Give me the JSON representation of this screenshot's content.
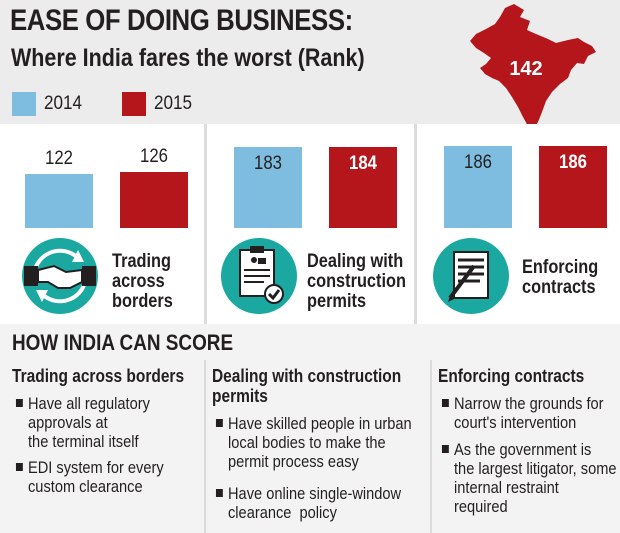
{
  "header": {
    "title": "EASE OF DOING BUSINESS:",
    "subtitle": "Where India fares the worst (Rank)"
  },
  "legend": [
    {
      "label": "2014",
      "color": "#7fbde0"
    },
    {
      "label": "2015",
      "color": "#b4161b"
    }
  ],
  "map": {
    "value": "142",
    "color": "#b4161b",
    "icon": "india-map-icon"
  },
  "chart_data": {
    "type": "bar",
    "title": "Where India fares the worst (Rank)",
    "categories": [
      "Trading across borders",
      "Dealing with construction permits",
      "Enforcing contracts"
    ],
    "series": [
      {
        "name": "2014",
        "values": [
          122,
          183,
          186
        ],
        "color": "#7fbde0"
      },
      {
        "name": "2015",
        "values": [
          126,
          184,
          186
        ],
        "color": "#b4161b"
      }
    ],
    "value_labels": [
      [
        "122",
        "183",
        "186"
      ],
      [
        "126",
        "184",
        "186"
      ]
    ],
    "legend_position": "top-left",
    "grid": false
  },
  "categories": [
    {
      "label": "Trading\nacross\nborders",
      "icon": "handshake-icon"
    },
    {
      "label": "Dealing with\nconstruction\npermits",
      "icon": "permit-document-icon"
    },
    {
      "label": "Enforcing\ncontracts",
      "icon": "contract-document-icon"
    }
  ],
  "bottom": {
    "heading": "HOW INDIA CAN SCORE",
    "columns": [
      {
        "title": "Trading across borders",
        "bullets": [
          "Have all regulatory\napprovals at\nthe terminal itself",
          "EDI system for every\ncustom clearance"
        ]
      },
      {
        "title": "Dealing with construction\npermits",
        "bullets": [
          "Have skilled people in urban\nlocal bodies to make the\npermit process easy",
          "Have online single-window\nclearance  policy"
        ]
      },
      {
        "title": "Enforcing contracts",
        "bullets": [
          "Narrow the grounds for\ncourt's intervention",
          "As the government is\nthe largest litigator, some\ninternal restraint\nrequired"
        ]
      }
    ]
  }
}
